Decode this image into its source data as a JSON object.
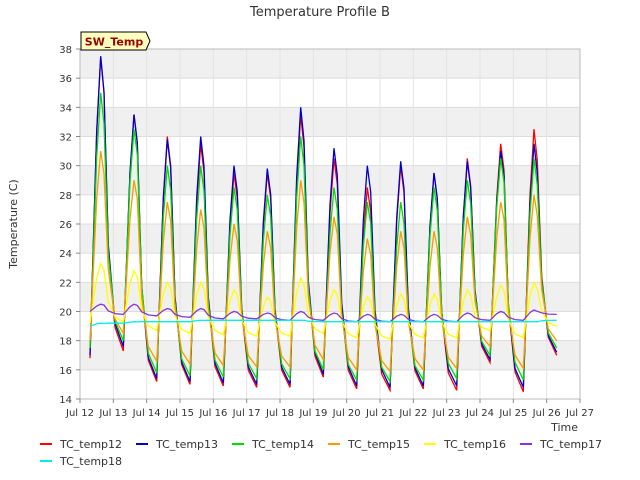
{
  "chart_data": {
    "type": "line",
    "title": "Temperature Profile B",
    "xlabel": "Time",
    "ylabel": "Temperature (C)",
    "ylim": [
      14,
      38
    ],
    "xlim": [
      12,
      27
    ],
    "y_ticks": [
      14,
      16,
      18,
      20,
      22,
      24,
      26,
      28,
      30,
      32,
      34,
      36,
      38
    ],
    "x_ticks": [
      {
        "value": 12,
        "label": "Jul 12"
      },
      {
        "value": 13,
        "label": "Jul 13"
      },
      {
        "value": 14,
        "label": "Jul 14"
      },
      {
        "value": 15,
        "label": "Jul 15"
      },
      {
        "value": 16,
        "label": "Jul 16"
      },
      {
        "value": 17,
        "label": "Jul 17"
      },
      {
        "value": 18,
        "label": "Jul 18"
      },
      {
        "value": 19,
        "label": "Jul 19"
      },
      {
        "value": 20,
        "label": "Jul 20"
      },
      {
        "value": 21,
        "label": "Jul 21"
      },
      {
        "value": 22,
        "label": "Jul 22"
      },
      {
        "value": 23,
        "label": "Jul 23"
      },
      {
        "value": 24,
        "label": "Jul 24"
      },
      {
        "value": 25,
        "label": "Jul 25"
      },
      {
        "value": 26,
        "label": "Jul 26"
      },
      {
        "value": 27,
        "label": "Jul 27"
      }
    ],
    "annotation": "SW_Temp",
    "grid": true,
    "legend_position": "bottom",
    "day_positions": [
      12.3,
      13.3,
      14.3,
      15.3,
      16.3,
      17.3,
      18.3,
      19.3,
      20.3,
      21.3,
      22.3,
      23.3,
      24.3,
      25.3,
      26.3
    ],
    "series": [
      {
        "name": "TC_temp12",
        "color": "#ff0000",
        "peaks": [
          37.5,
          33.5,
          32.0,
          31.5,
          29.5,
          29.5,
          33.5,
          30.5,
          28.5,
          30.0,
          29.5,
          30.5,
          31.5,
          32.5
        ],
        "mins": [
          16.8,
          17.3,
          15.2,
          15.0,
          14.9,
          14.8,
          14.8,
          15.5,
          14.7,
          14.6,
          14.7,
          14.6,
          16.5,
          14.5,
          17.0
        ]
      },
      {
        "name": "TC_temp13",
        "color": "#0000cc",
        "peaks": [
          37.5,
          33.5,
          31.8,
          32.0,
          30.0,
          29.8,
          34.0,
          31.2,
          30.0,
          30.3,
          29.5,
          30.3,
          31.0,
          31.5
        ],
        "mins": [
          17.0,
          17.6,
          15.4,
          15.2,
          15.1,
          15.0,
          15.0,
          15.7,
          14.9,
          14.8,
          14.9,
          14.9,
          16.7,
          14.8,
          17.2
        ]
      },
      {
        "name": "TC_temp14",
        "color": "#00dd00",
        "peaks": [
          35.0,
          32.5,
          30.0,
          30.0,
          28.5,
          28.0,
          32.0,
          28.5,
          27.5,
          27.5,
          28.5,
          29.0,
          30.5,
          30.5
        ],
        "mins": [
          17.5,
          18.0,
          15.8,
          15.6,
          15.5,
          15.4,
          15.4,
          16.0,
          15.3,
          15.2,
          15.3,
          15.4,
          17.0,
          15.3,
          17.5
        ]
      },
      {
        "name": "TC_temp15",
        "color": "#ff9900",
        "peaks": [
          31.0,
          29.0,
          27.5,
          27.0,
          26.0,
          25.5,
          29.0,
          26.5,
          25.0,
          25.5,
          25.5,
          26.5,
          27.5,
          28.0
        ],
        "mins": [
          18.0,
          18.5,
          16.6,
          16.4,
          16.3,
          16.2,
          16.2,
          16.7,
          16.0,
          15.9,
          16.0,
          16.1,
          17.6,
          16.1,
          18.0
        ]
      },
      {
        "name": "TC_temp16",
        "color": "#ffff00",
        "peaks": [
          23.3,
          22.8,
          22.0,
          22.0,
          21.5,
          21.0,
          22.3,
          21.5,
          21.0,
          21.2,
          21.2,
          21.5,
          21.8,
          22.0
        ],
        "mins": [
          19.2,
          19.3,
          18.7,
          18.5,
          18.4,
          18.3,
          18.3,
          18.5,
          18.2,
          18.1,
          18.2,
          18.2,
          18.7,
          18.2,
          19.0
        ]
      },
      {
        "name": "TC_temp17",
        "color": "#8833dd",
        "peaks": [
          20.5,
          20.5,
          20.2,
          20.2,
          20.0,
          19.9,
          20.0,
          19.9,
          19.8,
          19.8,
          19.8,
          19.9,
          20.0,
          20.1
        ],
        "mins": [
          20.0,
          19.8,
          19.7,
          19.6,
          19.5,
          19.5,
          19.4,
          19.4,
          19.3,
          19.3,
          19.3,
          19.3,
          19.4,
          19.4,
          19.8
        ]
      },
      {
        "name": "TC_temp18",
        "color": "#00eeee",
        "peaks": [
          19.2,
          19.3,
          19.3,
          19.4,
          19.4,
          19.4,
          19.4,
          19.3,
          19.3,
          19.3,
          19.3,
          19.3,
          19.3,
          19.3
        ],
        "mins": [
          19.0,
          19.2,
          19.3,
          19.3,
          19.4,
          19.4,
          19.4,
          19.3,
          19.3,
          19.3,
          19.3,
          19.3,
          19.3,
          19.3,
          19.4
        ]
      }
    ]
  }
}
